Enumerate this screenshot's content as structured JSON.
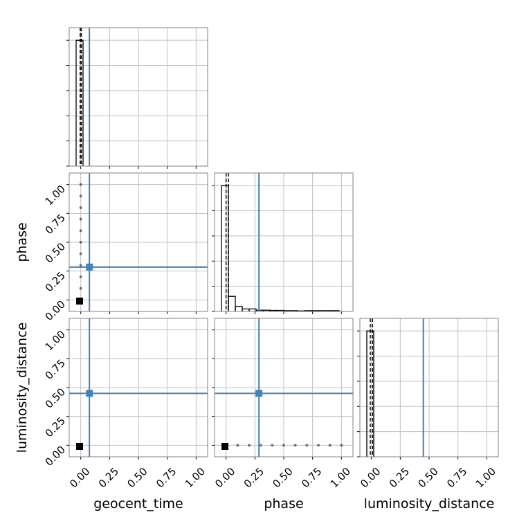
{
  "chart_data": [
    {
      "type": "hist",
      "xlim": [
        -0.1,
        1.1
      ],
      "ylim": [
        0,
        5.5
      ],
      "xticks": [
        {
          "value": 0,
          "label": null
        },
        {
          "value": 0.25,
          "label": null
        },
        {
          "value": 0.5,
          "label": null
        },
        {
          "value": 0.75,
          "label": null
        },
        {
          "value": 1,
          "label": null
        }
      ],
      "yticks": [
        {
          "value": 0,
          "label": null
        },
        {
          "value": 1,
          "label": null
        },
        {
          "value": 2,
          "label": null
        },
        {
          "value": 3,
          "label": null
        },
        {
          "value": 4,
          "label": null
        },
        {
          "value": 5,
          "label": null
        }
      ],
      "bins": [
        -0.04,
        0.02
      ],
      "counts": [
        5
      ],
      "quantiles": [
        -0.005,
        0.005
      ],
      "truth": 0.075,
      "color": "#000000",
      "truth_color": "#4682b4",
      "grid": true
    },
    {
      "type": "scatter",
      "ylabel": "phase",
      "xlim": [
        -0.1,
        1.1
      ],
      "ylim": [
        -0.1,
        1.1
      ],
      "xticks": [
        {
          "value": 0,
          "label": null
        },
        {
          "value": 0.25,
          "label": null
        },
        {
          "value": 0.5,
          "label": null
        },
        {
          "value": 0.75,
          "label": null
        },
        {
          "value": 1,
          "label": null
        }
      ],
      "yticks": [
        {
          "value": 0,
          "label": "0.00"
        },
        {
          "value": 0.25,
          "label": "0.25"
        },
        {
          "value": 0.5,
          "label": "0.50"
        },
        {
          "value": 0.75,
          "label": "0.75"
        },
        {
          "value": 1,
          "label": "1.00"
        }
      ],
      "x": [
        0,
        0,
        0,
        0,
        0,
        0,
        0,
        0,
        0,
        0,
        0
      ],
      "y": [
        0,
        0.1,
        0.2,
        0.3,
        0.4,
        0.5,
        0.6,
        0.7,
        0.8,
        0.9,
        1
      ],
      "peak_x": -0.01,
      "peak_y": -0.01,
      "truth_x": 0.075,
      "truth_y": 0.285,
      "color": "#000000",
      "truth_color": "#4682b4",
      "grid": true
    },
    {
      "type": "hist",
      "xlim": [
        -0.1,
        1.1
      ],
      "ylim": [
        0,
        5.5
      ],
      "xticks": [
        {
          "value": 0,
          "label": null
        },
        {
          "value": 0.25,
          "label": null
        },
        {
          "value": 0.5,
          "label": null
        },
        {
          "value": 0.75,
          "label": null
        },
        {
          "value": 1,
          "label": null
        }
      ],
      "yticks": [
        {
          "value": 0,
          "label": null
        },
        {
          "value": 1,
          "label": null
        },
        {
          "value": 2,
          "label": null
        },
        {
          "value": 3,
          "label": null
        },
        {
          "value": 4,
          "label": null
        },
        {
          "value": 5,
          "label": null
        }
      ],
      "bins": [
        -0.04,
        0.02,
        0.08,
        0.14,
        0.2,
        0.26,
        0.32,
        0.38,
        0.44,
        0.5,
        0.56,
        0.62,
        0.68,
        0.74,
        0.8,
        0.86,
        0.92,
        0.98
      ],
      "counts": [
        5,
        0.6,
        0.2,
        0.1,
        0.1,
        0.05,
        0.05,
        0.04,
        0.04,
        0.03,
        0.03,
        0.02,
        0.03,
        0.03,
        0.03,
        0.03,
        0.03
      ],
      "quantiles": [
        0.0,
        0.02
      ],
      "truth": 0.285,
      "color": "#000000",
      "truth_color": "#4682b4",
      "grid": true
    },
    {
      "type": "scatter",
      "xlabel": "geocent_time",
      "ylabel": "luminosity_distance",
      "xlim": [
        -0.1,
        1.1
      ],
      "ylim": [
        -0.1,
        1.1
      ],
      "xticks": [
        {
          "value": 0,
          "label": "0.00"
        },
        {
          "value": 0.25,
          "label": "0.25"
        },
        {
          "value": 0.5,
          "label": "0.50"
        },
        {
          "value": 0.75,
          "label": "0.75"
        },
        {
          "value": 1,
          "label": "1.00"
        }
      ],
      "yticks": [
        {
          "value": 0,
          "label": "0.00"
        },
        {
          "value": 0.25,
          "label": "0.25"
        },
        {
          "value": 0.5,
          "label": "0.50"
        },
        {
          "value": 0.75,
          "label": "0.75"
        },
        {
          "value": 1,
          "label": "1.00"
        }
      ],
      "x": [
        0
      ],
      "y": [
        0
      ],
      "peak_x": -0.01,
      "peak_y": -0.01,
      "truth_x": 0.075,
      "truth_y": 0.45,
      "color": "#000000",
      "truth_color": "#4682b4",
      "grid": true
    },
    {
      "type": "scatter",
      "xlabel": "phase",
      "xlim": [
        -0.1,
        1.1
      ],
      "ylim": [
        -0.1,
        1.1
      ],
      "xticks": [
        {
          "value": 0,
          "label": "0.00"
        },
        {
          "value": 0.25,
          "label": "0.25"
        },
        {
          "value": 0.5,
          "label": "0.50"
        },
        {
          "value": 0.75,
          "label": "0.75"
        },
        {
          "value": 1,
          "label": "1.00"
        }
      ],
      "yticks": [
        {
          "value": 0,
          "label": null
        },
        {
          "value": 0.25,
          "label": null
        },
        {
          "value": 0.5,
          "label": null
        },
        {
          "value": 0.75,
          "label": null
        },
        {
          "value": 1,
          "label": null
        }
      ],
      "x": [
        0,
        0.1,
        0.2,
        0.3,
        0.4,
        0.5,
        0.6,
        0.7,
        0.8,
        0.9,
        1
      ],
      "y": [
        0,
        0,
        0,
        0,
        0,
        0,
        0,
        0,
        0,
        0,
        0
      ],
      "peak_x": -0.01,
      "peak_y": -0.01,
      "truth_x": 0.285,
      "truth_y": 0.45,
      "color": "#000000",
      "truth_color": "#4682b4",
      "grid": true
    },
    {
      "type": "hist",
      "xlabel": "luminosity_distance",
      "xlim": [
        -0.1,
        1.1
      ],
      "ylim": [
        0,
        5.5
      ],
      "xticks": [
        {
          "value": 0,
          "label": "0.00"
        },
        {
          "value": 0.25,
          "label": "0.25"
        },
        {
          "value": 0.5,
          "label": "0.50"
        },
        {
          "value": 0.75,
          "label": "0.75"
        },
        {
          "value": 1,
          "label": "1.00"
        }
      ],
      "yticks": [
        {
          "value": 0,
          "label": null
        },
        {
          "value": 1,
          "label": null
        },
        {
          "value": 2,
          "label": null
        },
        {
          "value": 3,
          "label": null
        },
        {
          "value": 4,
          "label": null
        },
        {
          "value": 5,
          "label": null
        }
      ],
      "bins": [
        -0.04,
        0.02
      ],
      "counts": [
        5
      ],
      "quantiles": [
        -0.01,
        0.01
      ],
      "truth": 0.45,
      "color": "#000000",
      "truth_color": "#4682b4",
      "grid": true
    }
  ]
}
